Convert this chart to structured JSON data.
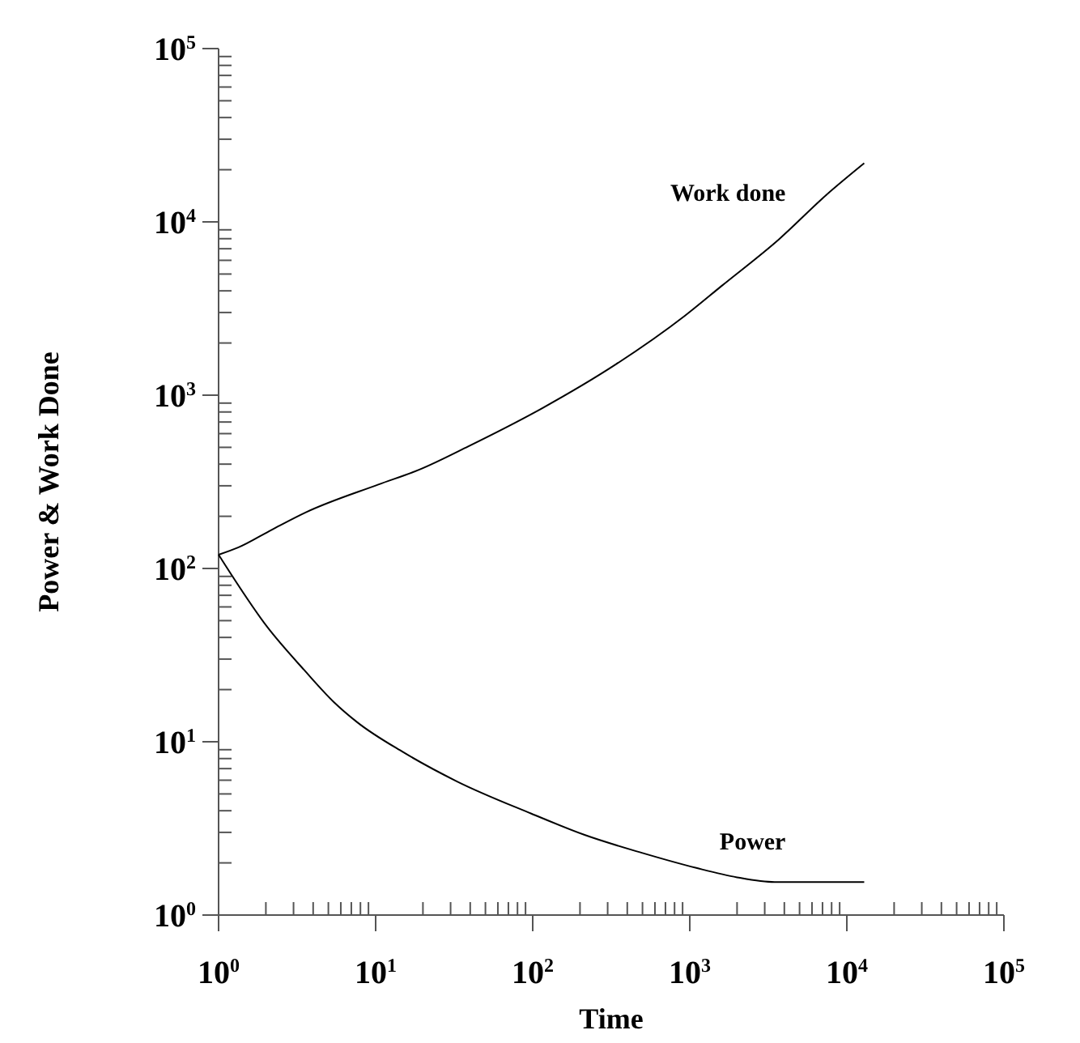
{
  "chart_data": {
    "type": "line",
    "xlabel": "Time",
    "ylabel": "Power & Work Done",
    "log": "xy",
    "xlim": [
      1,
      100000
    ],
    "ylim": [
      1,
      100000
    ],
    "xticks": [
      {
        "value": 1,
        "label": "10$^{0}$"
      },
      {
        "value": 10,
        "label": "10$^{1}$"
      },
      {
        "value": 100,
        "label": "10$^{2}$"
      },
      {
        "value": 1000,
        "label": "10$^{3}$"
      },
      {
        "value": 10000,
        "label": "10$^{4}$"
      },
      {
        "value": 100000,
        "label": "10$^{5}$"
      }
    ],
    "yticks": [
      {
        "value": 1,
        "label": "10$^{0}$"
      },
      {
        "value": 10,
        "label": "10$^{1}$"
      },
      {
        "value": 100,
        "label": "10$^{2}$"
      },
      {
        "value": 1000,
        "label": "10$^{3}$"
      },
      {
        "value": 10000,
        "label": "10$^{4}$"
      },
      {
        "value": 100000,
        "label": "10$^{5}$"
      }
    ],
    "grid": false,
    "marker": "none",
    "line_style": "solid",
    "series": [
      {
        "name": "Work done",
        "color": "#000000",
        "x": [
          1,
          1.33,
          2.2,
          3.6,
          10.4,
          19,
          39,
          115,
          340,
          930,
          1600,
          3700,
          7400,
          12900
        ],
        "values": [
          120,
          132,
          168,
          211,
          305,
          372,
          507,
          841,
          1510,
          2870,
          4280,
          7940,
          14300,
          21800
        ]
      },
      {
        "name": "Power",
        "color": "#000000",
        "x": [
          1,
          2.04,
          3.5,
          5.4,
          7.6,
          15,
          33,
          98,
          214,
          500,
          1100,
          2000,
          3470,
          12900
        ],
        "values": [
          120,
          46,
          26,
          17,
          13,
          8.7,
          5.9,
          3.85,
          2.9,
          2.28,
          1.87,
          1.65,
          1.55,
          1.55
        ]
      }
    ]
  }
}
